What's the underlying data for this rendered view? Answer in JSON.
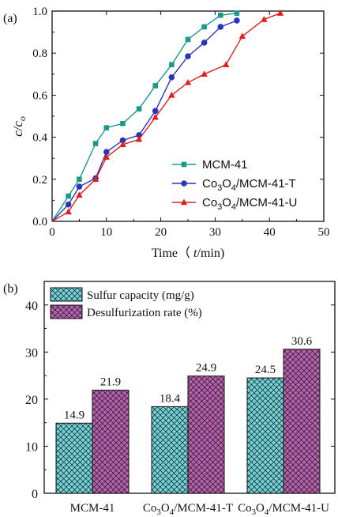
{
  "chart_data": [
    {
      "type": "line",
      "panel_label": "(a)",
      "xlabel": "Time（ t/min)",
      "ylabel": "c/c₀",
      "xlim": [
        0,
        50
      ],
      "ylim": [
        0.0,
        1.0
      ],
      "xticks": [
        0,
        10,
        20,
        30,
        40,
        50
      ],
      "yticks": [
        0.0,
        0.2,
        0.4,
        0.6,
        0.8,
        1.0
      ],
      "yticklabels": [
        "0.0",
        "0.2",
        "0.4",
        "0.6",
        "0.8",
        "1.0"
      ],
      "legend_position": "lower-right",
      "series": [
        {
          "name": "MCM-41",
          "color": "#1b9a8a",
          "marker": "square",
          "x": [
            0,
            3,
            5,
            8,
            10,
            13,
            16,
            19,
            22,
            25,
            28,
            31,
            34
          ],
          "y": [
            0.0,
            0.12,
            0.2,
            0.37,
            0.445,
            0.465,
            0.535,
            0.645,
            0.745,
            0.865,
            0.925,
            0.98,
            0.99
          ]
        },
        {
          "name": "Co₃O₄/MCM-41-T",
          "color": "#2a36b8",
          "marker": "circle",
          "x": [
            0,
            3,
            5,
            8,
            10,
            13,
            16,
            19,
            22,
            25,
            28,
            31,
            34
          ],
          "y": [
            0.0,
            0.08,
            0.165,
            0.205,
            0.33,
            0.385,
            0.41,
            0.525,
            0.685,
            0.785,
            0.85,
            0.925,
            0.955
          ]
        },
        {
          "name": "Co₃O₄/MCM-41-U",
          "color": "#e02020",
          "marker": "triangle",
          "x": [
            0,
            3,
            5,
            8,
            10,
            13,
            16,
            19,
            22,
            25,
            28,
            32,
            35,
            39,
            42
          ],
          "y": [
            0.0,
            0.045,
            0.125,
            0.2,
            0.305,
            0.365,
            0.39,
            0.495,
            0.6,
            0.66,
            0.7,
            0.745,
            0.88,
            0.96,
            0.99
          ]
        }
      ]
    },
    {
      "type": "bar",
      "panel_label": "(b)",
      "categories": [
        "MCM-41",
        "Co₃O₄/MCM-41-T",
        "Co₃O₄/MCM-41-U"
      ],
      "ylim": [
        0,
        45
      ],
      "yticks": [
        0,
        10,
        20,
        30,
        40
      ],
      "legend_position": "top-left",
      "series": [
        {
          "name": "Sulfur capacity (mg/g)",
          "color": "#6fd3d8",
          "hatch": "crosshatch",
          "values": [
            14.9,
            18.4,
            24.5
          ]
        },
        {
          "name": "Desulfurization rate (%)",
          "color": "#b85fb0",
          "hatch": "crosshatch",
          "values": [
            21.9,
            24.9,
            30.6
          ]
        }
      ]
    }
  ]
}
